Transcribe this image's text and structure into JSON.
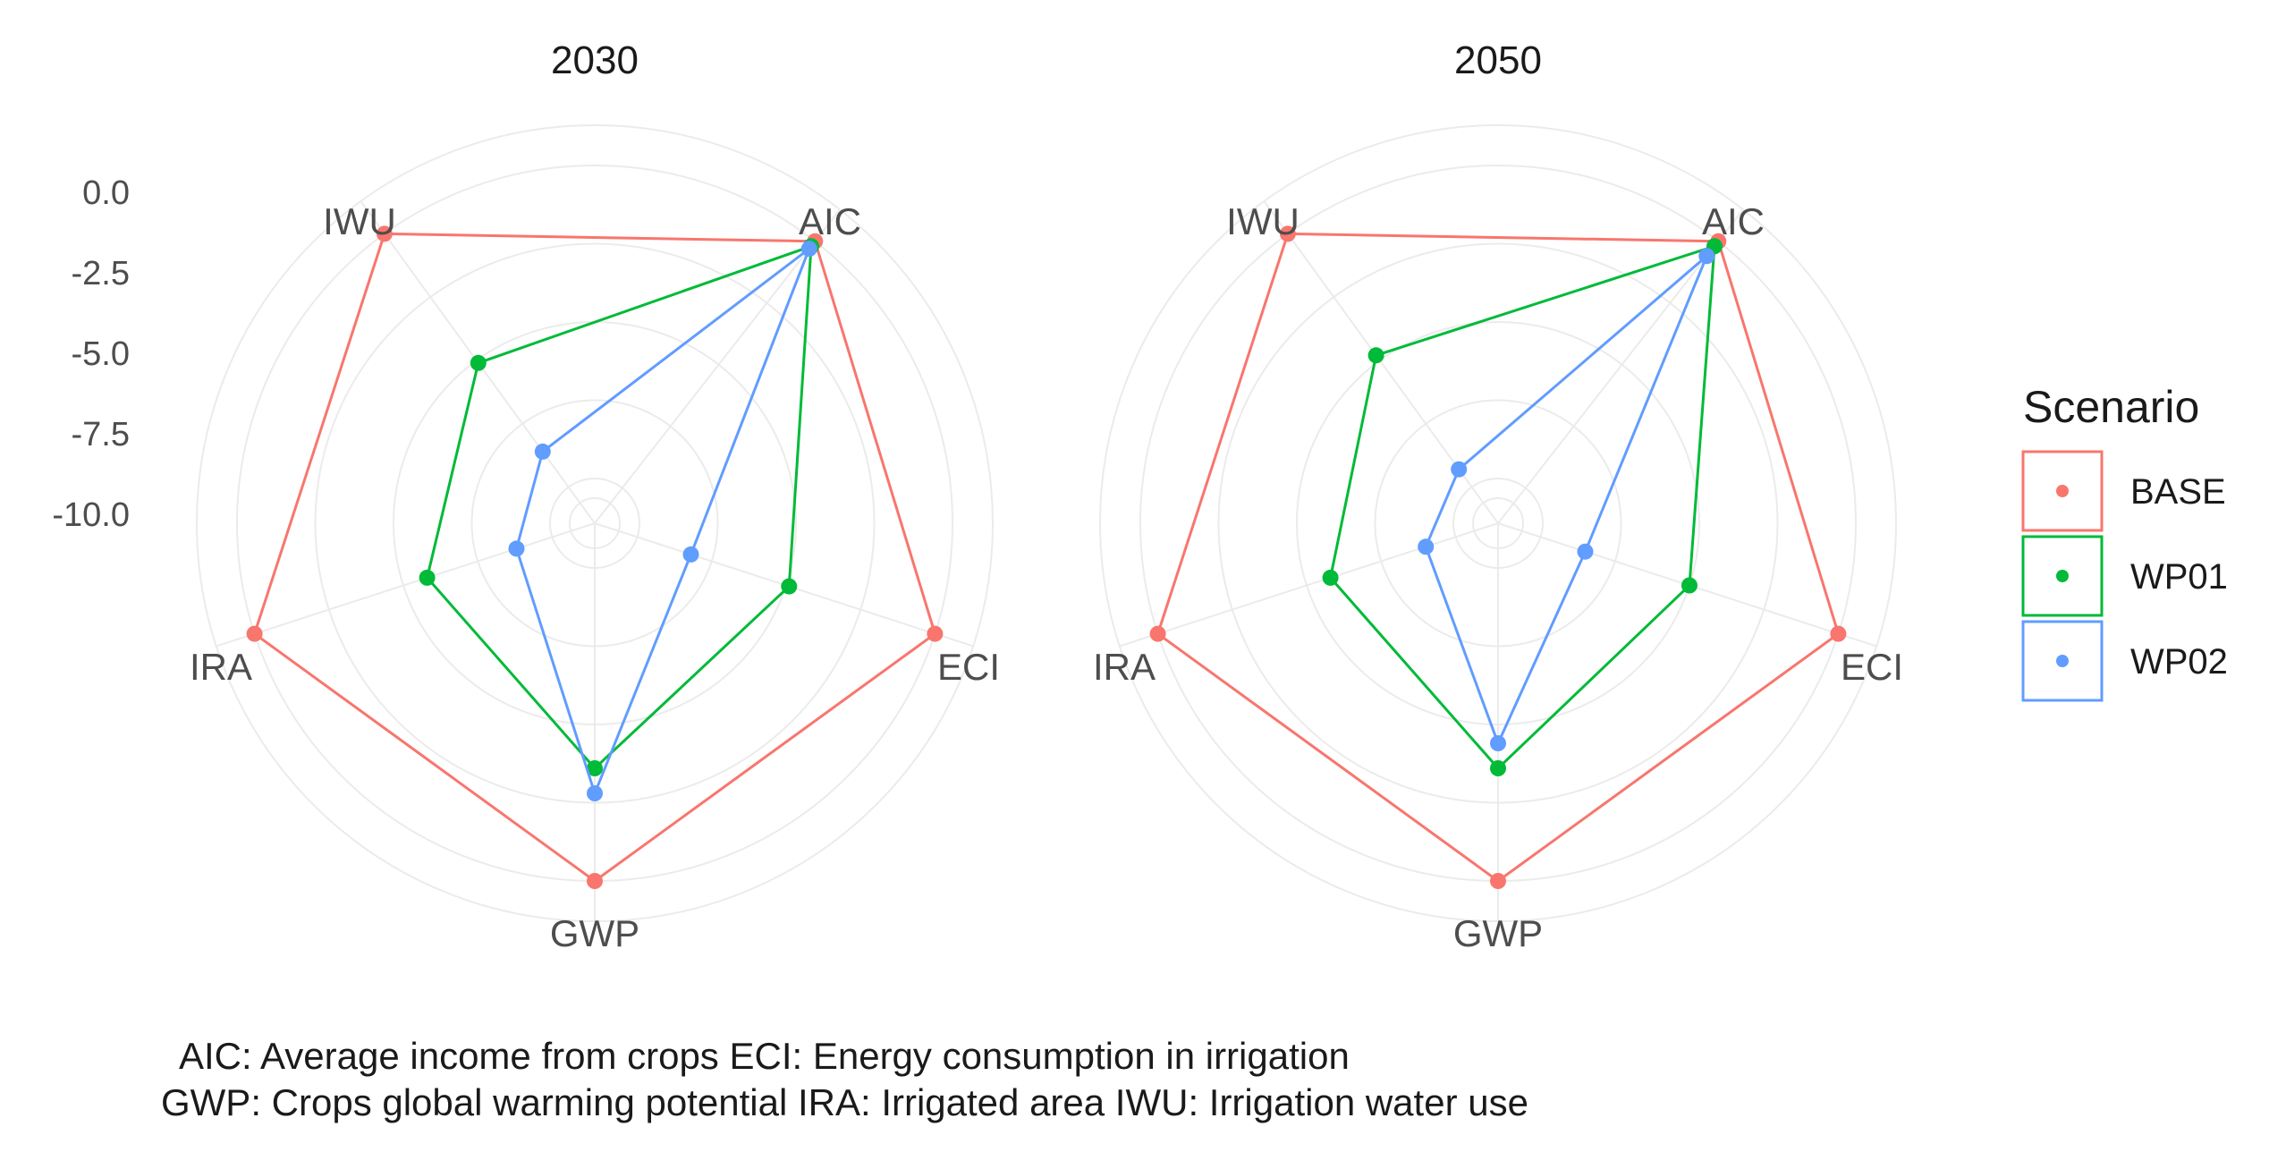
{
  "chart_data": {
    "type": "radar",
    "legend_title": "Scenario",
    "legend_position": "right",
    "axes": [
      "AIC",
      "ECI",
      "GWP",
      "IRA",
      "IWU"
    ],
    "r_ticks": [
      "0.0",
      "-2.5",
      "-5.0",
      "-7.5",
      "-10.0"
    ],
    "r_range": [
      -10,
      0
    ],
    "grid": true,
    "series_colors": {
      "BASE": "#F8766D",
      "WP01": "#00BA38",
      "WP02": "#619CFF"
    },
    "caption_lines": [
      "AIC: Average income from crops  ECI: Energy consumption in irrigation",
      "GWP: Crops global warming potential  IRA: Irrigated area  IWU: Irrigation water use"
    ],
    "panels": [
      {
        "title": "2030",
        "series": [
          {
            "name": "BASE",
            "values": [
              0,
              0,
              0,
              0,
              0
            ]
          },
          {
            "name": "WP01",
            "values": [
              -0.2,
              -4.9,
              -3.6,
              -5.8,
              -5.1
            ]
          },
          {
            "name": "WP02",
            "values": [
              -0.3,
              -8.2,
              -2.8,
              -8.8,
              -8.6
            ]
          }
        ]
      },
      {
        "title": "2050",
        "series": [
          {
            "name": "BASE",
            "values": [
              0,
              0,
              0,
              0,
              0
            ]
          },
          {
            "name": "WP01",
            "values": [
              -0.2,
              -5.0,
              -3.6,
              -5.8,
              -4.8
            ]
          },
          {
            "name": "WP02",
            "values": [
              -0.6,
              -8.5,
              -4.4,
              -9.0,
              -9.3
            ]
          }
        ]
      }
    ]
  }
}
